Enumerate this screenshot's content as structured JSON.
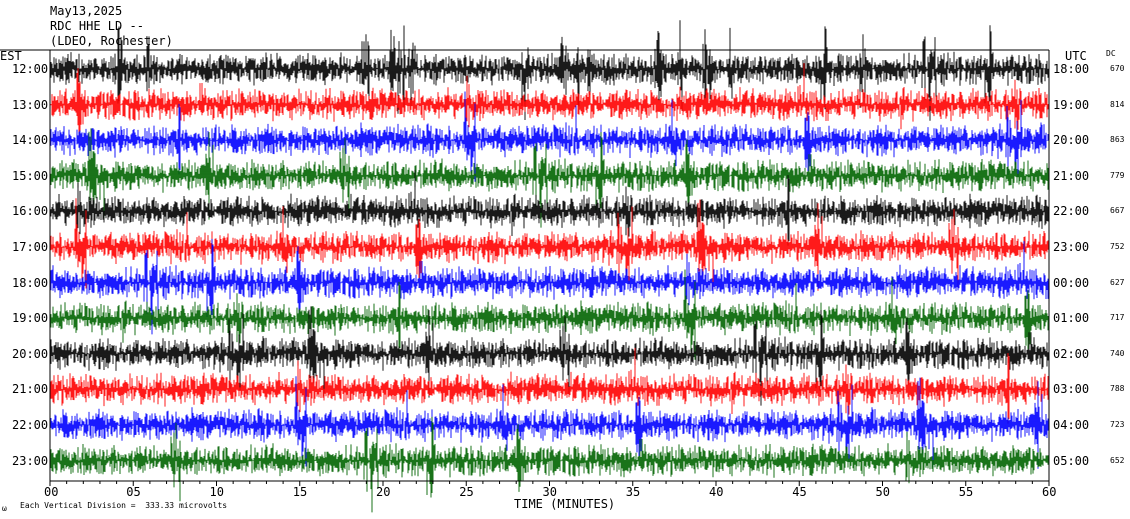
{
  "header": {
    "date": "May13,2025",
    "station": "RDC HHE LD --",
    "network": "(LDEO, Rochester)"
  },
  "chart_data": {
    "type": "line",
    "subtype": "helicorder",
    "left_axis_title": "EST",
    "right_axis_title": "UTC",
    "dc_title": "DC",
    "xlabel": "TIME (MINUTES)",
    "xlim": [
      0,
      60
    ],
    "x_ticks": [
      "00",
      "05",
      "10",
      "15",
      "20",
      "25",
      "30",
      "35",
      "40",
      "45",
      "50",
      "55",
      "60"
    ],
    "rows": [
      {
        "est": "12:00",
        "utc": "18:00",
        "dc": "670",
        "color": "#000000"
      },
      {
        "est": "13:00",
        "utc": "19:00",
        "dc": "814",
        "color": "#ff0000"
      },
      {
        "est": "14:00",
        "utc": "20:00",
        "dc": "863",
        "color": "#0000ff"
      },
      {
        "est": "15:00",
        "utc": "21:00",
        "dc": "779",
        "color": "#006400"
      },
      {
        "est": "16:00",
        "utc": "22:00",
        "dc": "667",
        "color": "#000000"
      },
      {
        "est": "17:00",
        "utc": "23:00",
        "dc": "752",
        "color": "#ff0000"
      },
      {
        "est": "18:00",
        "utc": "00:00",
        "dc": "627",
        "color": "#0000ff"
      },
      {
        "est": "19:00",
        "utc": "01:00",
        "dc": "717",
        "color": "#006400"
      },
      {
        "est": "20:00",
        "utc": "02:00",
        "dc": "740",
        "color": "#000000"
      },
      {
        "est": "21:00",
        "utc": "03:00",
        "dc": "788",
        "color": "#ff0000"
      },
      {
        "est": "22:00",
        "utc": "04:00",
        "dc": "723",
        "color": "#0000ff"
      },
      {
        "est": "23:00",
        "utc": "05:00",
        "dc": "652",
        "color": "#006400"
      }
    ],
    "footer_note": "Each Vertical Division =  333.33 microvolts",
    "footer_mark": "ω"
  }
}
